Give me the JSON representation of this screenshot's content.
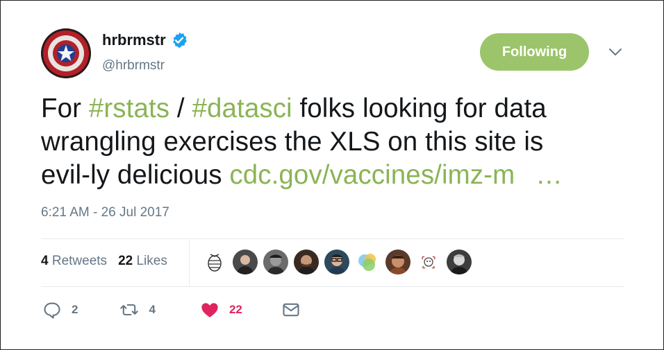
{
  "user": {
    "display_name": "hrbrmstr",
    "handle": "@hrbrmstr",
    "avatar_icon": "captain-america-shield-avatar",
    "verified": true
  },
  "follow_button": {
    "label": "Following"
  },
  "tweet": {
    "segments_line1": [
      "For ",
      "#rstats",
      " / ",
      "#datasci",
      " folks looking for data"
    ],
    "line2": "wrangling exercises the XLS on this site is",
    "line3_text": "evil-ly delicious ",
    "line3_link": "cdc.gov/vaccines/imz-m",
    "line3_ellipsis": "…"
  },
  "timestamp": "6:21 AM - 26 Jul 2017",
  "stats": {
    "retweets_count": "4",
    "retweets_label": "Retweets",
    "likes_count": "22",
    "likes_label": "Likes"
  },
  "actions": {
    "reply_count": "2",
    "retweet_count": "4",
    "like_count": "22"
  },
  "colors": {
    "accent_green": "#8ab455",
    "follow_button_bg": "#9cc46b",
    "like_red": "#e0245e",
    "verified_blue": "#1da1f2",
    "muted": "#657786"
  }
}
